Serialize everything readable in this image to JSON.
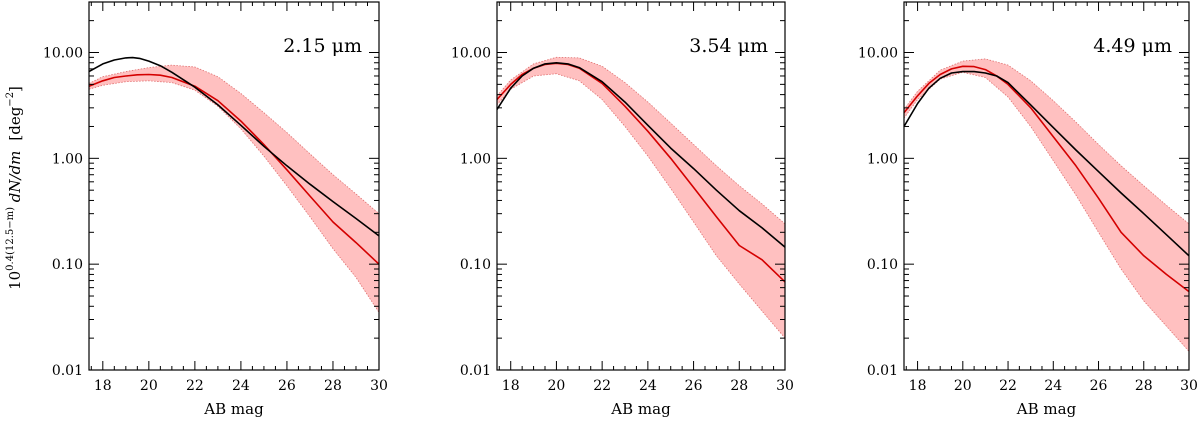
{
  "ylabel_parts": {
    "base": "10",
    "exponent": "0.4(12.5−m)",
    "expression": " dN/dm",
    "unit_open": "[deg",
    "unit_exponent": "−2",
    "unit_close": "]"
  },
  "chart_data": [
    {
      "type": "line",
      "annotation": "2.15 μm",
      "xlabel": "AB mag",
      "ylabel": "10^0.4(12.5−m) dN/dm [deg^−2]",
      "xlim": [
        17.4,
        30
      ],
      "ylim": [
        0.01,
        30
      ],
      "yscale": "log",
      "xticks": [
        18,
        20,
        22,
        24,
        26,
        28,
        30
      ],
      "yticks": [
        0.01,
        0.1,
        1.0,
        10.0
      ],
      "ytick_labels": [
        "0.01",
        "0.10",
        "1.00",
        "10.00"
      ],
      "grid": false,
      "series": [
        {
          "color": "#000000",
          "x": [
            17.4,
            18,
            18.5,
            19,
            19.3,
            19.6,
            20,
            20.5,
            21,
            22,
            23,
            24,
            25,
            26,
            27,
            28,
            29,
            30
          ],
          "y": [
            6.6,
            7.8,
            8.5,
            8.9,
            8.95,
            8.8,
            8.3,
            7.5,
            6.5,
            4.7,
            3.2,
            2.05,
            1.3,
            0.85,
            0.57,
            0.39,
            0.27,
            0.185
          ]
        },
        {
          "color": "#d40000",
          "x": [
            17.4,
            18,
            18.5,
            19,
            19.5,
            20,
            20.5,
            21,
            22,
            23,
            24,
            25,
            26,
            27,
            28,
            29,
            30
          ],
          "y": [
            4.8,
            5.4,
            5.8,
            6.0,
            6.15,
            6.2,
            6.1,
            5.8,
            4.8,
            3.5,
            2.25,
            1.35,
            0.78,
            0.44,
            0.25,
            0.16,
            0.1
          ]
        }
      ],
      "band": {
        "color": "#ffc0c0",
        "edge_color": "#e07070",
        "x": [
          17.4,
          18,
          19,
          20,
          21,
          22,
          23,
          24,
          25,
          26,
          27,
          28,
          29,
          30
        ],
        "upper": [
          5.1,
          5.9,
          6.6,
          7.2,
          7.6,
          7.3,
          5.9,
          4.1,
          2.7,
          1.75,
          1.1,
          0.7,
          0.46,
          0.3
        ],
        "lower": [
          4.5,
          4.9,
          5.3,
          5.4,
          5.2,
          4.4,
          3.1,
          1.9,
          1.05,
          0.55,
          0.28,
          0.14,
          0.075,
          0.035
        ]
      }
    },
    {
      "type": "line",
      "annotation": "3.54 μm",
      "xlabel": "AB mag",
      "ylabel": "",
      "xlim": [
        17.4,
        30
      ],
      "ylim": [
        0.01,
        30
      ],
      "yscale": "log",
      "xticks": [
        18,
        20,
        22,
        24,
        26,
        28,
        30
      ],
      "yticks": [
        0.01,
        0.1,
        1.0,
        10.0
      ],
      "ytick_labels": [
        "0.01",
        "0.10",
        "1.00",
        "10.00"
      ],
      "grid": false,
      "series": [
        {
          "color": "#000000",
          "x": [
            17.4,
            18,
            18.5,
            19,
            19.5,
            20,
            20.5,
            21,
            22,
            23,
            24,
            25,
            26,
            27,
            28,
            29,
            30
          ],
          "y": [
            2.9,
            4.6,
            6.0,
            7.1,
            7.8,
            8.0,
            7.8,
            7.2,
            5.3,
            3.4,
            2.05,
            1.25,
            0.8,
            0.5,
            0.32,
            0.22,
            0.145
          ]
        },
        {
          "color": "#d40000",
          "x": [
            17.4,
            18,
            18.5,
            19,
            19.5,
            20,
            20.5,
            21,
            22,
            23,
            24,
            25,
            26,
            27,
            28,
            29,
            30
          ],
          "y": [
            3.6,
            5.0,
            6.2,
            7.1,
            7.7,
            7.9,
            7.7,
            7.1,
            5.1,
            3.1,
            1.8,
            1.0,
            0.53,
            0.28,
            0.15,
            0.11,
            0.068
          ]
        }
      ],
      "band": {
        "color": "#ffc0c0",
        "edge_color": "#e07070",
        "x": [
          17.4,
          18,
          19,
          20,
          21,
          22,
          23,
          24,
          25,
          26,
          27,
          28,
          29,
          30
        ],
        "upper": [
          3.9,
          5.5,
          7.8,
          9.0,
          8.9,
          7.4,
          5.2,
          3.4,
          2.15,
          1.35,
          0.85,
          0.55,
          0.37,
          0.24
        ],
        "lower": [
          3.2,
          4.5,
          6.0,
          6.3,
          5.4,
          3.6,
          2.0,
          1.05,
          0.52,
          0.25,
          0.12,
          0.065,
          0.036,
          0.02
        ]
      }
    },
    {
      "type": "line",
      "annotation": "4.49 μm",
      "xlabel": "AB mag",
      "ylabel": "",
      "xlim": [
        17.4,
        30
      ],
      "ylim": [
        0.01,
        30
      ],
      "yscale": "log",
      "xticks": [
        18,
        20,
        22,
        24,
        26,
        28,
        30
      ],
      "yticks": [
        0.01,
        0.1,
        1.0,
        10.0
      ],
      "ytick_labels": [
        "0.01",
        "0.10",
        "1.00",
        "10.00"
      ],
      "grid": false,
      "series": [
        {
          "color": "#000000",
          "x": [
            17.4,
            18,
            18.5,
            19,
            19.5,
            20,
            20.5,
            21,
            21.5,
            22,
            23,
            24,
            25,
            26,
            27,
            28,
            29,
            30
          ],
          "y": [
            2.0,
            3.3,
            4.6,
            5.7,
            6.4,
            6.6,
            6.6,
            6.4,
            6.0,
            5.2,
            3.2,
            1.95,
            1.2,
            0.75,
            0.47,
            0.3,
            0.19,
            0.12
          ]
        },
        {
          "color": "#d40000",
          "x": [
            17.4,
            18,
            18.5,
            19,
            19.5,
            20,
            20.5,
            21,
            21.5,
            22,
            23,
            24,
            25,
            26,
            27,
            28,
            29,
            30
          ],
          "y": [
            2.7,
            3.9,
            5.1,
            6.2,
            7.0,
            7.4,
            7.35,
            6.9,
            6.0,
            5.0,
            3.0,
            1.6,
            0.85,
            0.42,
            0.2,
            0.12,
            0.08,
            0.055
          ]
        }
      ],
      "band": {
        "color": "#ffc0c0",
        "edge_color": "#e07070",
        "x": [
          17.4,
          18,
          19,
          20,
          21,
          22,
          23,
          24,
          25,
          26,
          27,
          28,
          29,
          30
        ],
        "upper": [
          2.9,
          4.3,
          6.8,
          8.3,
          8.7,
          7.6,
          5.4,
          3.5,
          2.2,
          1.35,
          0.85,
          0.55,
          0.36,
          0.24
        ],
        "lower": [
          2.4,
          3.6,
          5.6,
          6.5,
          5.8,
          3.8,
          2.0,
          0.95,
          0.45,
          0.2,
          0.09,
          0.045,
          0.026,
          0.015
        ]
      }
    }
  ]
}
